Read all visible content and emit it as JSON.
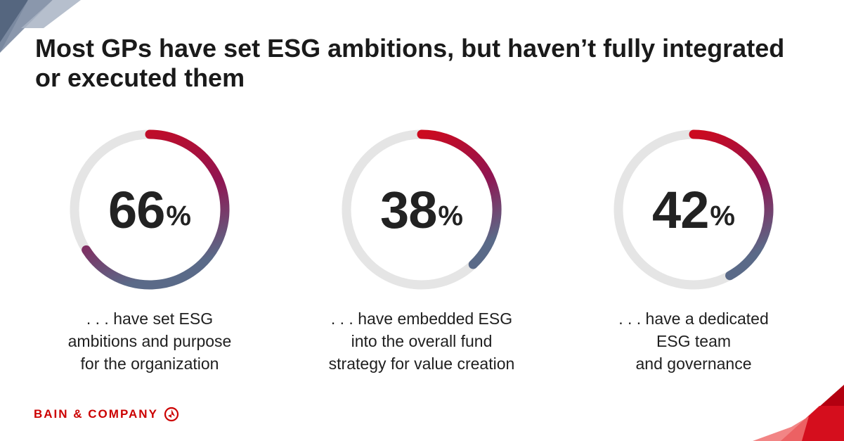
{
  "title": "Most GPs have set ESG ambitions, but haven’t fully integrated or executed them",
  "colors": {
    "track": "#e5e5e5",
    "gradient_start": "#cc0a1e",
    "gradient_mid": "#8f1552",
    "gradient_end": "#5a6a88",
    "brand": "#cc0000"
  },
  "chart_data": [
    {
      "type": "pie",
      "values": [
        66
      ],
      "value_label": "66",
      "unit": "%",
      "description_lines": [
        ". . . have set ESG",
        "ambitions and purpose",
        "for the organization"
      ]
    },
    {
      "type": "pie",
      "values": [
        38
      ],
      "value_label": "38",
      "unit": "%",
      "description_lines": [
        ". . . have embedded ESG",
        "into the overall fund",
        "strategy for value creation"
      ]
    },
    {
      "type": "pie",
      "values": [
        42
      ],
      "value_label": "42",
      "unit": "%",
      "description_lines": [
        ". . . have a dedicated",
        "ESG team",
        "and governance"
      ]
    }
  ],
  "logo": {
    "text": "BAIN & COMPANY",
    "icon": "bain-logo-icon"
  }
}
